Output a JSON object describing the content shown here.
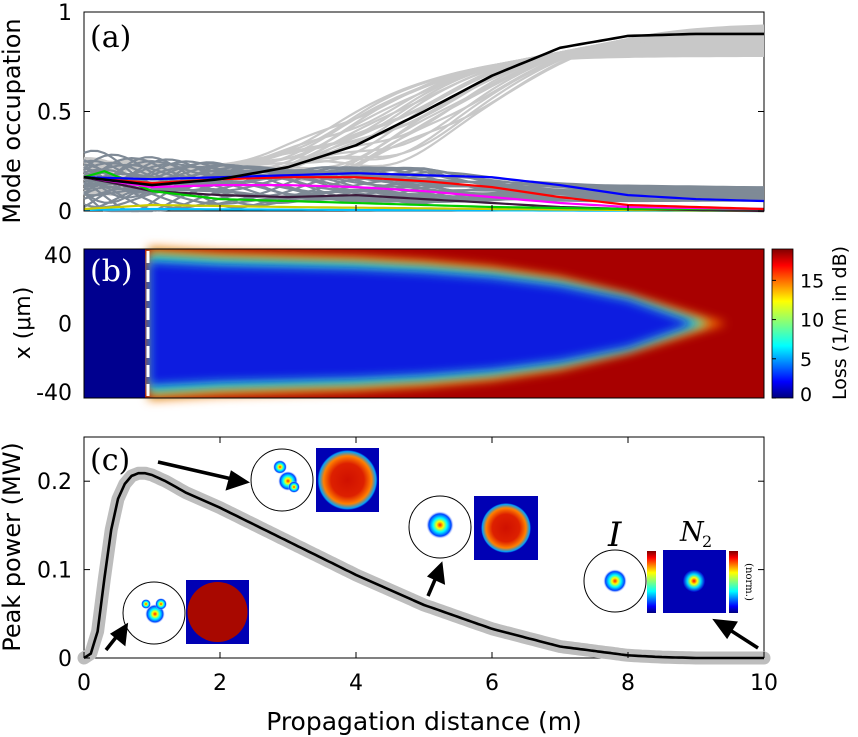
{
  "chart_data": [
    {
      "panel": "a",
      "type": "line",
      "panel_label": "(a)",
      "ylabel": "Mode occupation",
      "xlim": [
        0,
        10
      ],
      "ylim": [
        0,
        1
      ],
      "yticks": [
        "0",
        "0.5",
        "1"
      ],
      "colors": {
        "bundle_high": "#c8c8c8",
        "bundle_low": "#7f8a96",
        "highlight": "#000000"
      },
      "series": [
        {
          "color": "#000000",
          "x": [
            0,
            0.5,
            1,
            2,
            3,
            4,
            5,
            6,
            7,
            8,
            9,
            10
          ],
          "values": [
            0.17,
            0.15,
            0.13,
            0.16,
            0.22,
            0.33,
            0.5,
            0.68,
            0.82,
            0.88,
            0.89,
            0.89
          ]
        },
        {
          "color": "#0000ff",
          "x": [
            0,
            1,
            2,
            3,
            4,
            5,
            6,
            7,
            8,
            9,
            10
          ],
          "values": [
            0.17,
            0.16,
            0.17,
            0.18,
            0.19,
            0.18,
            0.17,
            0.13,
            0.08,
            0.06,
            0.05
          ]
        },
        {
          "color": "#ff0000",
          "x": [
            0,
            1,
            2,
            3,
            4,
            5,
            6,
            7,
            8,
            10
          ],
          "values": [
            0.17,
            0.14,
            0.16,
            0.17,
            0.17,
            0.15,
            0.12,
            0.07,
            0.03,
            0.01
          ]
        },
        {
          "color": "#ff00ff",
          "x": [
            0,
            1,
            2,
            3,
            4,
            5,
            6,
            7,
            8,
            10
          ],
          "values": [
            0.17,
            0.12,
            0.13,
            0.13,
            0.12,
            0.1,
            0.07,
            0.04,
            0.02,
            0.01
          ]
        },
        {
          "color": "#00cc00",
          "x": [
            0,
            0.3,
            1,
            2,
            3,
            4,
            6,
            8,
            10
          ],
          "values": [
            0.17,
            0.2,
            0.1,
            0.06,
            0.05,
            0.04,
            0.02,
            0.01,
            0.01
          ]
        },
        {
          "color": "#3b1a3b",
          "x": [
            0,
            1,
            2,
            3,
            4,
            5,
            6,
            7,
            8,
            10
          ],
          "values": [
            0.17,
            0.1,
            0.08,
            0.07,
            0.08,
            0.06,
            0.04,
            0.02,
            0.01,
            0
          ]
        },
        {
          "color": "#cccc00",
          "x": [
            0,
            1,
            3,
            6,
            10
          ],
          "values": [
            0.01,
            0.03,
            0.02,
            0.01,
            0
          ]
        },
        {
          "color": "#00bfff",
          "x": [
            0,
            1,
            4,
            10
          ],
          "values": [
            0.005,
            0.01,
            0.005,
            0
          ]
        }
      ]
    },
    {
      "panel": "b",
      "type": "heatmap",
      "panel_label": "(b)",
      "ylabel": "x (μm)",
      "xlim": [
        0,
        10
      ],
      "ylim": [
        -40,
        40
      ],
      "yticks": [
        "40",
        "0",
        "-40"
      ],
      "colorbar": {
        "label": "Loss (1/m in dB)",
        "ticks": [
          "15",
          "10",
          "5",
          "0"
        ],
        "range": [
          0,
          19
        ]
      },
      "core_boundary_x": 0.95,
      "core_halfwidth_um": [
        [
          1,
          36
        ],
        [
          2,
          34
        ],
        [
          3,
          33
        ],
        [
          4,
          32
        ],
        [
          5,
          30
        ],
        [
          6,
          27
        ],
        [
          7,
          22
        ],
        [
          8,
          14
        ],
        [
          9,
          0
        ]
      ]
    },
    {
      "panel": "c",
      "type": "line",
      "panel_label": "(c)",
      "xlabel": "Propagation distance (m)",
      "ylabel": "Peak power (MW)",
      "xlim": [
        0,
        10
      ],
      "ylim": [
        0,
        0.25
      ],
      "xticks": [
        "0",
        "2",
        "4",
        "6",
        "8",
        "10"
      ],
      "yticks": [
        "0",
        "0.1",
        "0.2"
      ],
      "x": [
        0,
        0.1,
        0.2,
        0.3,
        0.4,
        0.5,
        0.6,
        0.7,
        0.8,
        0.9,
        1.0,
        1.2,
        1.5,
        2,
        3,
        4,
        5,
        6,
        7,
        8,
        8.5,
        9,
        9.5,
        10
      ],
      "values": [
        0,
        0.005,
        0.03,
        0.09,
        0.145,
        0.18,
        0.197,
        0.206,
        0.209,
        0.209,
        0.207,
        0.2,
        0.187,
        0.17,
        0.132,
        0.094,
        0.06,
        0.033,
        0.013,
        0.003,
        0.001,
        0,
        0,
        0
      ],
      "inset_labels": {
        "intensity": "I",
        "population": "N",
        "population_subscript": "2",
        "colorbar_note": "(norm.)"
      }
    }
  ]
}
